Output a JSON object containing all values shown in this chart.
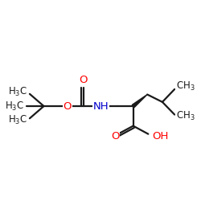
{
  "bg_color": "#ffffff",
  "bond_color": "#1a1a1a",
  "O_color": "#ff0000",
  "N_color": "#0000cc",
  "line_width": 1.6,
  "font_size": 8.5,
  "fig_size": [
    2.5,
    2.5
  ],
  "dpi": 100,
  "xlim": [
    0,
    10
  ],
  "ylim": [
    2,
    9
  ]
}
